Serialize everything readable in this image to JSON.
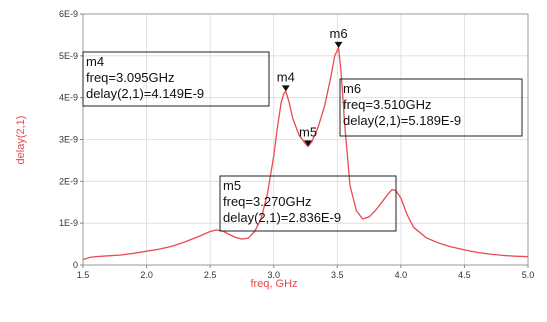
{
  "chart_data": {
    "type": "line",
    "title": "",
    "xlabel": "freq, GHz",
    "ylabel": "delay(2,1)",
    "xlim": [
      1.5,
      5.0
    ],
    "ylim": [
      0,
      6e-09
    ],
    "x_ticks": [
      "1.5",
      "2.0",
      "2.5",
      "3.0",
      "3.5",
      "4.0",
      "4.5",
      "5.0"
    ],
    "y_ticks": [
      "0",
      "1E-9",
      "2E-9",
      "3E-9",
      "4E-9",
      "5E-9",
      "6E-9"
    ],
    "grid": true,
    "series": [
      {
        "color": "#ea4a50",
        "x": [
          1.5,
          1.55,
          1.6,
          1.7,
          1.8,
          1.9,
          2.0,
          2.1,
          2.2,
          2.3,
          2.4,
          2.5,
          2.55,
          2.6,
          2.65,
          2.7,
          2.75,
          2.8,
          2.85,
          2.9,
          2.95,
          3.0,
          3.03,
          3.06,
          3.08,
          3.095,
          3.12,
          3.15,
          3.2,
          3.25,
          3.27,
          3.3,
          3.35,
          3.4,
          3.45,
          3.48,
          3.51,
          3.53,
          3.56,
          3.6,
          3.65,
          3.7,
          3.75,
          3.8,
          3.85,
          3.9,
          3.93,
          3.96,
          4.0,
          4.05,
          4.1,
          4.2,
          4.3,
          4.4,
          4.5,
          4.6,
          4.7,
          4.8,
          4.9,
          5.0
        ],
        "y": [
          1.3e-10,
          1.8e-10,
          2e-10,
          2.2e-10,
          2.4e-10,
          2.8e-10,
          3.3e-10,
          3.8e-10,
          4.5e-10,
          5.5e-10,
          6.7e-10,
          8e-10,
          8.4e-10,
          8.1e-10,
          7.3e-10,
          6.6e-10,
          6.2e-10,
          6.4e-10,
          8e-10,
          1.1e-09,
          1.7e-09,
          2.6e-09,
          3.3e-09,
          3.9e-09,
          4.1e-09,
          4.149e-09,
          3.9e-09,
          3.5e-09,
          3.1e-09,
          2.9e-09,
          2.836e-09,
          2.95e-09,
          3.3e-09,
          3.8e-09,
          4.5e-09,
          5e-09,
          5.189e-09,
          4.6e-09,
          3.3e-09,
          1.9e-09,
          1.3e-09,
          1.1e-09,
          1.15e-09,
          1.3e-09,
          1.5e-09,
          1.7e-09,
          1.8e-09,
          1.78e-09,
          1.6e-09,
          1.2e-09,
          9e-10,
          6.5e-10,
          5.2e-10,
          4.3e-10,
          3.6e-10,
          3e-10,
          2.6e-10,
          2.3e-10,
          2.1e-10,
          2e-10
        ]
      }
    ],
    "markers": [
      {
        "name": "m4",
        "x": 3.095,
        "y": 4.149e-09,
        "lines": [
          "m4",
          "freq=3.095GHz",
          "delay(2,1)=4.149E-9"
        ]
      },
      {
        "name": "m5",
        "x": 3.27,
        "y": 2.836e-09,
        "lines": [
          "m5",
          "freq=3.270GHz",
          "delay(2,1)=2.836E-9"
        ]
      },
      {
        "name": "m6",
        "x": 3.51,
        "y": 5.189e-09,
        "lines": [
          "m6",
          "freq=3.510GHz",
          "delay(2,1)=5.189E-9"
        ]
      }
    ]
  }
}
